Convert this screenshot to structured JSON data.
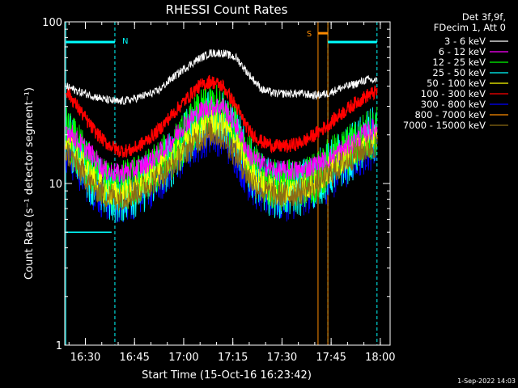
{
  "chart_data": {
    "type": "line",
    "title": "RHESSI Count Rates",
    "xlabel": "Start Time (15-Oct-16 16:23:42)",
    "ylabel": "Count Rate (s⁻¹ detector segment⁻¹)",
    "y_scale": "log",
    "ylim": [
      1,
      100
    ],
    "xlim": [
      "16:23:42",
      "18:03:00"
    ],
    "y_ticks": [
      {
        "value": 1,
        "label": "1"
      },
      {
        "value": 10,
        "label": "10"
      },
      {
        "value": 100,
        "label": "100"
      }
    ],
    "x_ticks": [
      {
        "value": "16:30",
        "label": "16:30"
      },
      {
        "value": "16:45",
        "label": "16:45"
      },
      {
        "value": "17:00",
        "label": "17:00"
      },
      {
        "value": "17:15",
        "label": "17:15"
      },
      {
        "value": "17:30",
        "label": "17:30"
      },
      {
        "value": "17:45",
        "label": "17:45"
      },
      {
        "value": "18:00",
        "label": "18:00"
      }
    ],
    "legend": {
      "position": "top-right",
      "header": [
        "Det 3f,9f,",
        "FDecim 1, Att 0"
      ]
    },
    "grid": false,
    "x": [
      "16:24",
      "16:28",
      "16:32",
      "16:36",
      "16:40",
      "16:44",
      "16:48",
      "16:52",
      "16:56",
      "17:00",
      "17:04",
      "17:08",
      "17:12",
      "17:16",
      "17:20",
      "17:24",
      "17:28",
      "17:32",
      "17:36",
      "17:40",
      "17:44",
      "17:48",
      "17:52",
      "17:56",
      "17:59"
    ],
    "series": [
      {
        "name": "3 - 6 keV",
        "color": "#ffffff",
        "values": [
          40,
          37,
          35,
          33,
          32,
          33,
          35,
          37,
          44,
          51,
          58,
          64,
          64,
          60,
          47,
          38,
          36,
          36,
          36,
          35,
          36,
          39,
          41,
          44,
          43
        ]
      },
      {
        "name": "6 - 12 keV",
        "color": "#ff00ff",
        "values": [
          22,
          18,
          15,
          12,
          11.5,
          12,
          13,
          15,
          18,
          23,
          27,
          30,
          30,
          23,
          15,
          13,
          12,
          12,
          12,
          13,
          14,
          16,
          18,
          21,
          22
        ]
      },
      {
        "name": "12 - 25 keV",
        "color": "#00ff00",
        "values": [
          21,
          16,
          12,
          10,
          9.5,
          10,
          11,
          13,
          15,
          19,
          25,
          29,
          28,
          22,
          14,
          10.5,
          9.8,
          9.8,
          10,
          11,
          13,
          15,
          17,
          20,
          21
        ]
      },
      {
        "name": "25 - 50 keV",
        "color": "#00ffff",
        "values": [
          20,
          15,
          11,
          9,
          8.5,
          9,
          10,
          12,
          14,
          18,
          23,
          27,
          26,
          20,
          13,
          10,
          9.2,
          9.2,
          9.5,
          10.5,
          12,
          14,
          16,
          19,
          20
        ]
      },
      {
        "name": "50 - 100 keV",
        "color": "#ffff00",
        "values": [
          19,
          14,
          11,
          9,
          8.5,
          9,
          10,
          12,
          14,
          17,
          21,
          24,
          23,
          18,
          12,
          9.8,
          9,
          9,
          9.4,
          10,
          12,
          14,
          16,
          18,
          19
        ]
      },
      {
        "name": "100 - 300 keV",
        "color": "#ff0000",
        "values": [
          38,
          29,
          22,
          18,
          16,
          16,
          18,
          21,
          26,
          32,
          39,
          43,
          40,
          30,
          21,
          18,
          17,
          17,
          18,
          20,
          23,
          27,
          31,
          35,
          37
        ]
      },
      {
        "name": "300 - 800 keV",
        "color": "#0000ff",
        "values": [
          17,
          13,
          10,
          8.5,
          8,
          8.5,
          9.5,
          11,
          13,
          16,
          19,
          22,
          21,
          16,
          11,
          9,
          8.5,
          8.5,
          9,
          9.8,
          11,
          13,
          15,
          17,
          18
        ]
      },
      {
        "name": "800 - 7000 keV",
        "color": "#ff8c00",
        "values": [
          17,
          13,
          10,
          8.8,
          8.4,
          8.8,
          9.8,
          11,
          13,
          16,
          19,
          21,
          20,
          15.5,
          11,
          9.2,
          8.8,
          8.8,
          9.2,
          10,
          11.5,
          13.5,
          15.5,
          17,
          18
        ]
      },
      {
        "name": "7000 - 15000 keV",
        "color": "#8b6b14",
        "values": [
          16,
          12.5,
          9.8,
          8.5,
          8.2,
          8.5,
          9.5,
          10.8,
          12.5,
          15.5,
          18.5,
          20.5,
          19.5,
          15,
          10.8,
          9,
          8.5,
          8.5,
          9,
          9.8,
          11,
          13,
          15,
          16.5,
          17.5
        ]
      }
    ],
    "attenuator_bar": {
      "color": "#00ffff",
      "segments": [
        {
          "start": "16:24",
          "end": "16:39",
          "level": 75,
          "label": "N"
        },
        {
          "start": "17:44",
          "end": "17:59",
          "level": 75,
          "label": ""
        }
      ],
      "lower_segment": {
        "start": "16:24",
        "end": "16:38",
        "level": 5
      }
    },
    "vertical_markers": [
      {
        "time": "16:24",
        "color": "#00ffff",
        "style": "solid"
      },
      {
        "time": "16:39",
        "color": "#00ffff",
        "style": "dashed"
      },
      {
        "time": "17:44",
        "color": "#00ffff",
        "style": "dashed"
      },
      {
        "time": "17:59",
        "color": "#00ffff",
        "style": "dashed"
      },
      {
        "time": "17:41",
        "color": "#ff8c00",
        "style": "solid",
        "label": "S"
      },
      {
        "time": "17:44",
        "color": "#ff8c00",
        "style": "solid"
      }
    ],
    "s_marker": {
      "start": "17:41",
      "end": "17:44",
      "level": 85,
      "color": "#ff8c00"
    }
  },
  "footer": {
    "timestamp": "1-Sep-2022 14:03"
  }
}
